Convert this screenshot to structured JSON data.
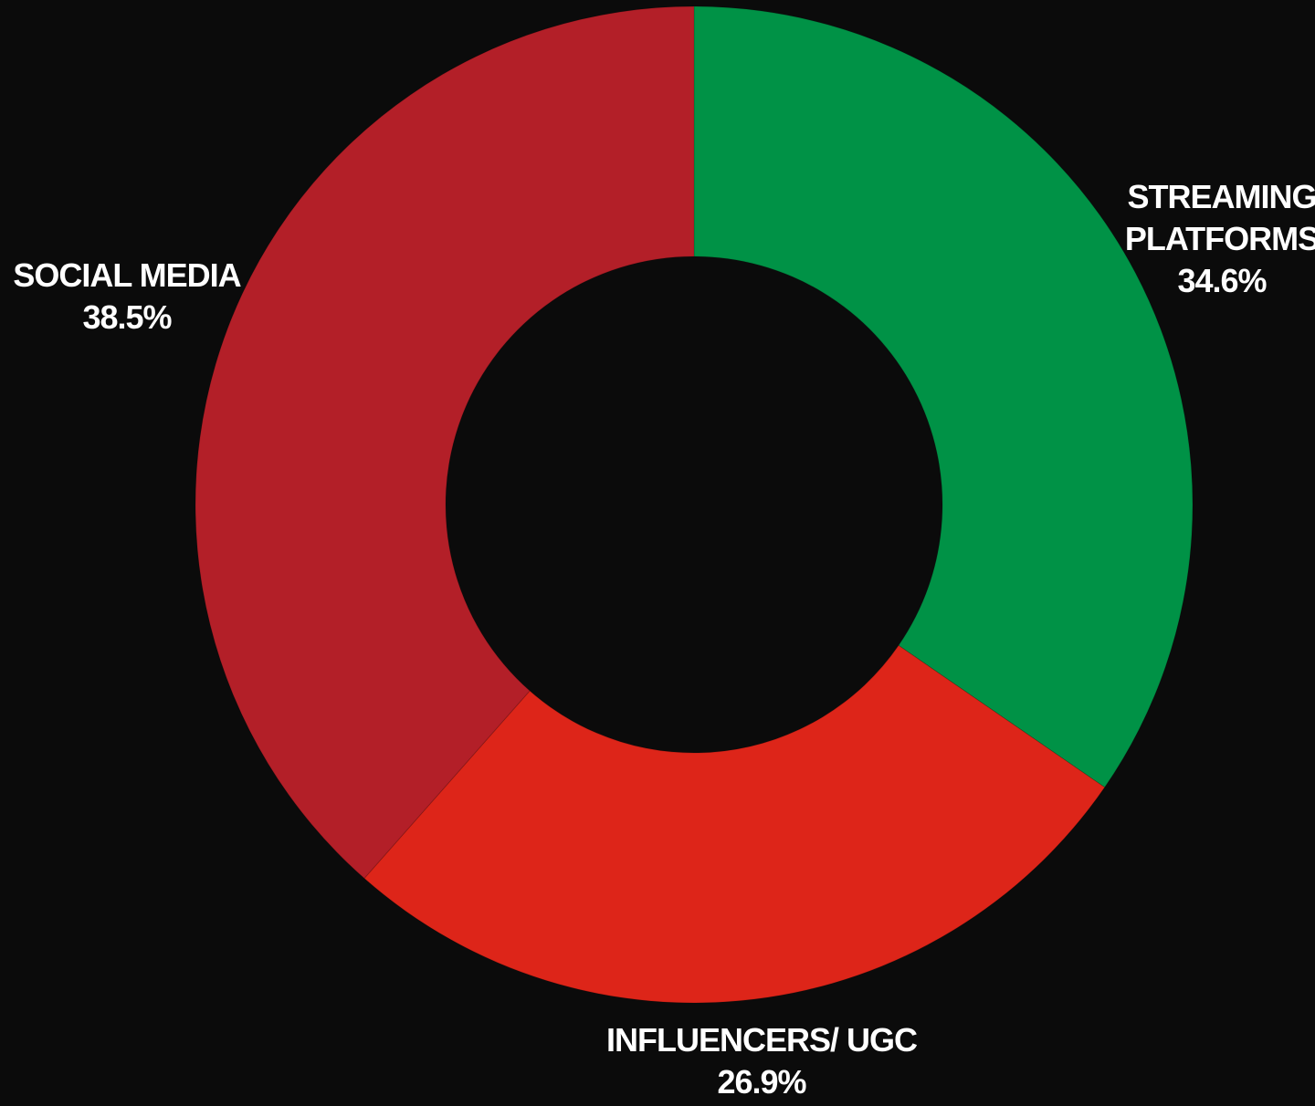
{
  "chart_data": {
    "type": "pie",
    "donut": true,
    "title": "",
    "background": "#0b0b0b",
    "slices": [
      {
        "label_lines": [
          "STREAMING",
          "PLATFORMS"
        ],
        "value": 34.6,
        "value_label": "34.6%",
        "color": "#009246"
      },
      {
        "label_lines": [
          "INFLUENCERS/ UGC"
        ],
        "value": 26.9,
        "value_label": "26.9%",
        "color": "#dd2519"
      },
      {
        "label_lines": [
          "SOCIAL MEDIA"
        ],
        "value": 38.5,
        "value_label": "38.5%",
        "color": "#b31f28"
      }
    ]
  }
}
